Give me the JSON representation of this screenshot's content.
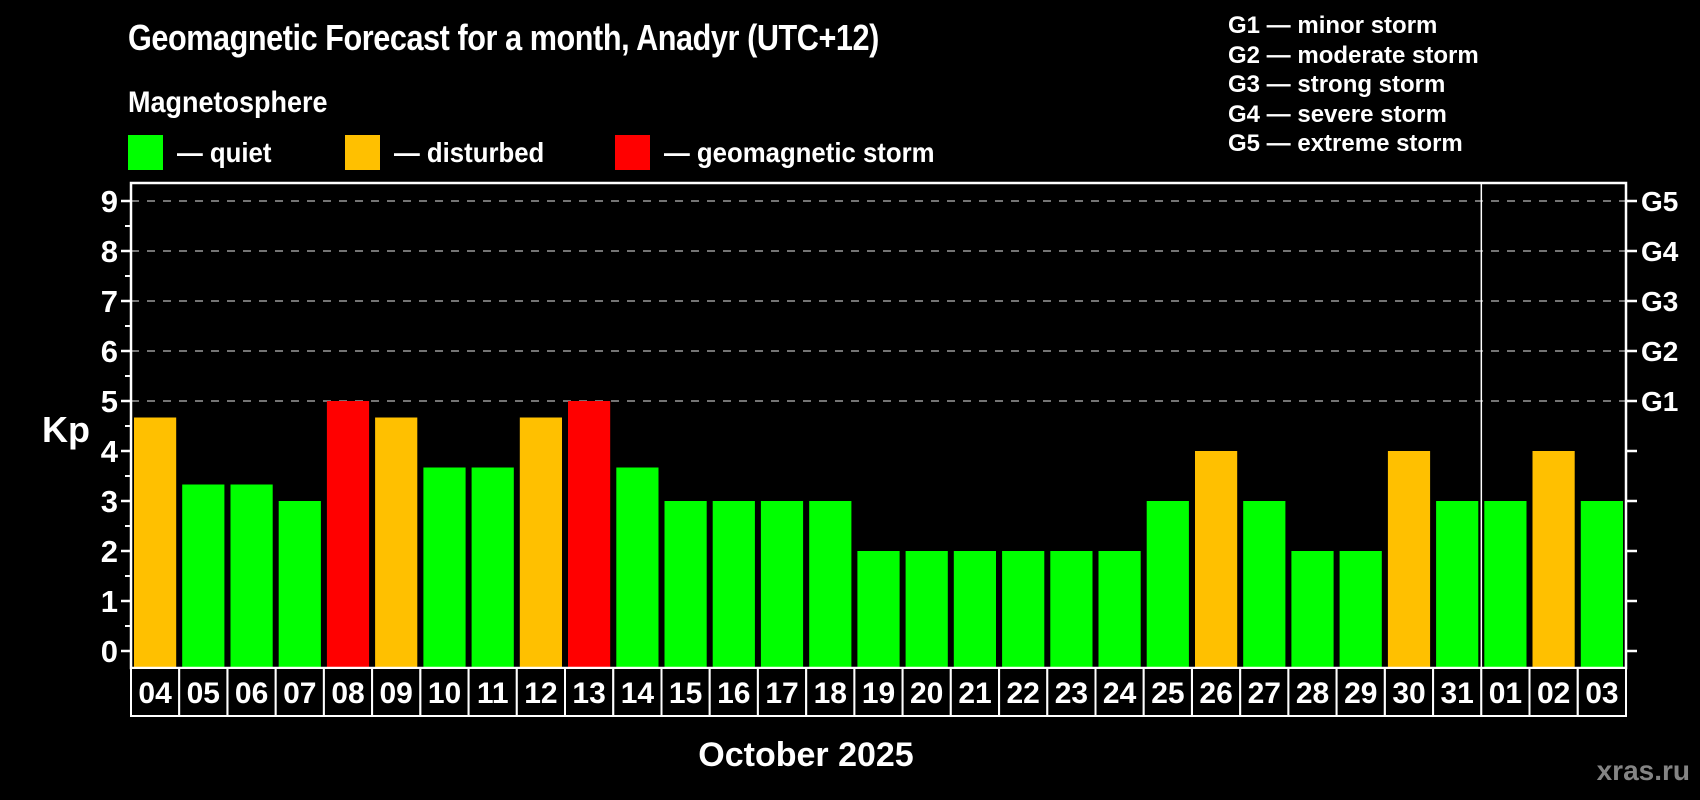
{
  "header": {
    "title": "Geomagnetic Forecast for a month, Anadyr (UTC+12)",
    "subtitle": "Magnetosphere"
  },
  "legend": {
    "items": [
      {
        "key": "quiet",
        "label": "— quiet",
        "color": "#00ff00"
      },
      {
        "key": "disturbed",
        "label": "— disturbed",
        "color": "#ffc000"
      },
      {
        "key": "storm",
        "label": "— geomagnetic storm",
        "color": "#ff0000"
      }
    ]
  },
  "storm_scale_legend": {
    "items": [
      {
        "label": "G1 — minor storm"
      },
      {
        "label": "G2 — moderate storm"
      },
      {
        "label": "G3 — strong storm"
      },
      {
        "label": "G4 — severe storm"
      },
      {
        "label": "G5 — extreme storm"
      }
    ]
  },
  "chart_data": {
    "type": "bar",
    "title": "Geomagnetic Forecast for a month, Anadyr (UTC+12)",
    "ylabel": "Kp",
    "xlabel": "October 2025",
    "ylim": [
      0,
      9
    ],
    "y_ticks": [
      0,
      1,
      2,
      3,
      4,
      5,
      6,
      7,
      8,
      9
    ],
    "grid_levels": [
      5,
      6,
      7,
      8,
      9
    ],
    "grid_style": "dashed",
    "legend_position": "top",
    "categories": [
      "04",
      "05",
      "06",
      "07",
      "08",
      "09",
      "10",
      "11",
      "12",
      "13",
      "14",
      "15",
      "16",
      "17",
      "18",
      "19",
      "20",
      "21",
      "22",
      "23",
      "24",
      "25",
      "26",
      "27",
      "28",
      "29",
      "30",
      "31",
      "01",
      "02",
      "03"
    ],
    "values": [
      4.67,
      3.33,
      3.33,
      3.0,
      5.0,
      4.67,
      3.67,
      3.67,
      4.67,
      5.0,
      3.67,
      3.0,
      3.0,
      3.0,
      3.0,
      2.0,
      2.0,
      2.0,
      2.0,
      2.0,
      2.0,
      3.0,
      4.0,
      3.0,
      2.0,
      2.0,
      4.0,
      3.0,
      3.0,
      4.0,
      3.0
    ],
    "statuses": [
      "disturbed",
      "quiet",
      "quiet",
      "quiet",
      "storm",
      "disturbed",
      "quiet",
      "quiet",
      "disturbed",
      "storm",
      "quiet",
      "quiet",
      "quiet",
      "quiet",
      "quiet",
      "quiet",
      "quiet",
      "quiet",
      "quiet",
      "quiet",
      "quiet",
      "quiet",
      "disturbed",
      "quiet",
      "quiet",
      "quiet",
      "disturbed",
      "quiet",
      "quiet",
      "disturbed",
      "quiet"
    ],
    "colors": {
      "quiet": "#00ff00",
      "disturbed": "#ffc000",
      "storm": "#ff0000"
    },
    "right_axis_labels": [
      {
        "label": "G1",
        "kp": 5
      },
      {
        "label": "G2",
        "kp": 6
      },
      {
        "label": "G3",
        "kp": 7
      },
      {
        "label": "G4",
        "kp": 8
      },
      {
        "label": "G5",
        "kp": 9
      }
    ],
    "month_separator_after_category": "31"
  },
  "footer": {
    "month_label": "October 2025",
    "watermark": "xras.ru"
  }
}
